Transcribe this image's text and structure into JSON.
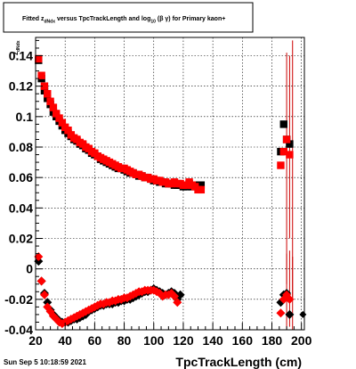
{
  "title": {
    "pre": "Fitted  z",
    "sub1": "dNdx",
    "mid": "  versus TpcTrackLength and log",
    "sub2": "10",
    "post": " (β γ) for Primary kaon+"
  },
  "ylabel": {
    "main": "z",
    "sub": "dNdx"
  },
  "footer": "Sun Sep  5 10:18:59 2021",
  "chart_data": {
    "type": "scatter",
    "title": "Fitted z_dNdx versus TpcTrackLength and log10(βγ) for Primary kaon+",
    "xlabel": "TpcTrackLength (cm)",
    "ylabel": "z_dNdx",
    "xlim": [
      20,
      202
    ],
    "ylim": [
      -0.04,
      0.152
    ],
    "xticks": [
      20,
      40,
      60,
      80,
      100,
      120,
      140,
      160,
      180,
      200
    ],
    "xtick_labels": [
      "20",
      "40",
      "60",
      "80",
      "100",
      "120",
      "140",
      "160",
      "180",
      "200"
    ],
    "yticks": [
      -0.04,
      -0.02,
      0,
      0.02,
      0.04,
      0.06,
      0.08,
      0.1,
      0.12,
      0.14
    ],
    "ytick_labels": [
      "-0.04",
      "-0.02",
      "0",
      "0.02",
      "0.04",
      "0.06",
      "0.08",
      "0.1",
      "0.12",
      "0.14"
    ],
    "grid": true,
    "x": [
      22,
      24,
      26,
      28,
      30,
      32,
      34,
      36,
      38,
      40,
      42,
      44,
      46,
      48,
      50,
      52,
      54,
      56,
      58,
      60,
      62,
      64,
      66,
      68,
      70,
      72,
      74,
      76,
      78,
      80,
      82,
      84,
      86,
      88,
      90,
      92,
      94,
      96,
      98,
      100,
      102,
      104,
      106,
      108,
      110,
      112,
      114,
      116,
      118,
      120,
      122,
      124,
      126,
      128,
      130,
      132,
      134,
      136,
      138,
      140,
      142,
      144,
      146,
      148,
      150,
      152,
      154,
      156,
      158,
      160,
      162,
      164,
      166,
      168,
      170,
      172,
      174,
      176,
      178,
      180,
      182,
      184,
      186,
      188,
      190,
      192,
      194,
      196,
      198,
      200
    ],
    "series": [
      {
        "name": "mean (black squares)",
        "color": "#000000",
        "marker": "square",
        "values": [
          0.137,
          0.125,
          0.117,
          0.112,
          0.108,
          0.103,
          0.1,
          0.097,
          0.094,
          0.091,
          0.089,
          0.087,
          0.085,
          0.084,
          0.082,
          0.081,
          0.079,
          0.078,
          0.076,
          0.075,
          0.074,
          0.072,
          0.071,
          0.07,
          0.069,
          0.068,
          0.067,
          0.066,
          0.066,
          0.065,
          0.064,
          0.063,
          0.063,
          0.062,
          0.061,
          0.061,
          0.06,
          0.06,
          0.059,
          0.058,
          0.058,
          0.057,
          0.057,
          0.056,
          0.056,
          0.056,
          0.055,
          0.055,
          0.055,
          0.054,
          0.054,
          0.056,
          0.054,
          0.055,
          0.054,
          0.055,
          0.077,
          0.095,
          0.085,
          0.082
        ],
        "x_start_index": 0,
        "errors": []
      },
      {
        "name": "mean (red squares)",
        "color": "#ff0000",
        "marker": "square",
        "values": [
          0.138,
          0.127,
          0.12,
          0.115,
          0.11,
          0.106,
          0.102,
          0.099,
          0.096,
          0.093,
          0.091,
          0.088,
          0.086,
          0.085,
          0.083,
          0.082,
          0.08,
          0.079,
          0.077,
          0.076,
          0.074,
          0.073,
          0.072,
          0.071,
          0.07,
          0.069,
          0.068,
          0.067,
          0.066,
          0.066,
          0.065,
          0.064,
          0.063,
          0.062,
          0.062,
          0.061,
          0.06,
          0.06,
          0.059,
          0.059,
          0.058,
          0.058,
          0.057,
          0.057,
          0.056,
          0.056,
          0.057,
          0.056,
          0.056,
          0.055,
          0.055,
          0.057,
          0.055,
          0.054,
          0.052,
          0.052,
          0.068,
          0.077,
          0.085,
          0.075
        ],
        "errors": []
      },
      {
        "name": "sigma (black diamonds)",
        "color": "#000000",
        "marker": "diamond",
        "values": [
          0.005,
          -0.008,
          -0.016,
          -0.022,
          -0.027,
          -0.03,
          -0.032,
          -0.034,
          -0.035,
          -0.035,
          -0.035,
          -0.034,
          -0.033,
          -0.033,
          -0.032,
          -0.031,
          -0.03,
          -0.028,
          -0.027,
          -0.026,
          -0.025,
          -0.024,
          -0.024,
          -0.023,
          -0.023,
          -0.023,
          -0.022,
          -0.022,
          -0.021,
          -0.021,
          -0.02,
          -0.02,
          -0.019,
          -0.018,
          -0.017,
          -0.016,
          -0.015,
          -0.015,
          -0.014,
          -0.013,
          -0.014,
          -0.015,
          -0.016,
          -0.017,
          -0.016,
          -0.015,
          -0.016,
          -0.02,
          -0.017,
          -0.022,
          -0.017,
          -0.016,
          -0.03
        ],
        "errors": []
      },
      {
        "name": "sigma (red diamonds)",
        "color": "#ff0000",
        "marker": "diamond",
        "values": [
          0.008,
          -0.008,
          -0.017,
          -0.025,
          -0.028,
          -0.031,
          -0.033,
          -0.035,
          -0.036,
          -0.035,
          -0.034,
          -0.033,
          -0.032,
          -0.031,
          -0.03,
          -0.029,
          -0.028,
          -0.027,
          -0.026,
          -0.025,
          -0.024,
          -0.023,
          -0.023,
          -0.022,
          -0.022,
          -0.021,
          -0.021,
          -0.02,
          -0.02,
          -0.019,
          -0.019,
          -0.018,
          -0.017,
          -0.016,
          -0.015,
          -0.015,
          -0.014,
          -0.014,
          -0.014,
          -0.014,
          -0.015,
          -0.016,
          -0.018,
          -0.017,
          -0.017,
          -0.016,
          -0.018,
          -0.022,
          -0.029,
          -0.02,
          -0.017,
          -0.02
        ],
        "errors": []
      }
    ]
  }
}
